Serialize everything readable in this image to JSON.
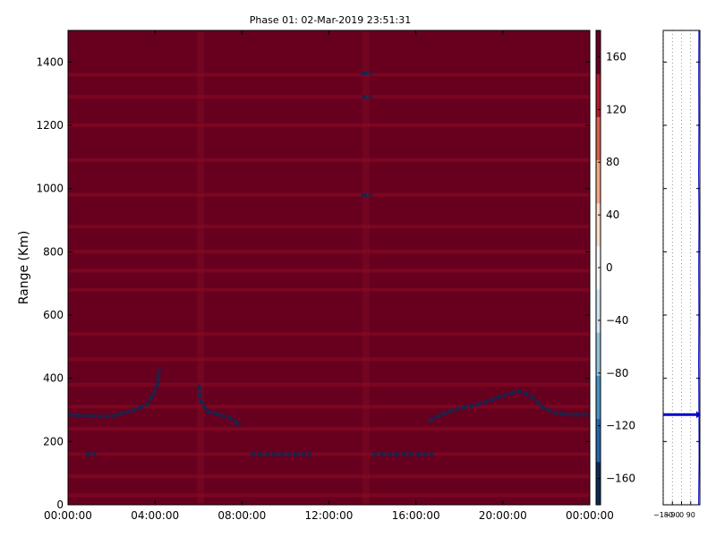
{
  "chart_data": [
    {
      "type": "heatmap",
      "title": "Phase 01: 02-Mar-2019 23:51:31",
      "xlabel": "",
      "ylabel": "Range (Km)",
      "x_ticks": [
        "00:00:00",
        "04:00:00",
        "08:00:00",
        "12:00:00",
        "16:00:00",
        "20:00:00",
        "00:00:00"
      ],
      "x_tick_hours": [
        0,
        4,
        8,
        12,
        16,
        20,
        24
      ],
      "xlim_hours": [
        0,
        24
      ],
      "y_ticks": [
        "0",
        "200",
        "400",
        "600",
        "800",
        "1000",
        "1200",
        "1400"
      ],
      "y_tick_values": [
        0,
        200,
        400,
        600,
        800,
        1000,
        1200,
        1400
      ],
      "ylim": [
        0,
        1500
      ],
      "background_value": 150,
      "bright_rows_km": [
        1360,
        1290,
        1200,
        1090,
        980,
        880,
        800,
        740,
        680,
        540,
        460,
        380,
        310,
        240,
        160,
        90,
        30
      ],
      "dark_columns_hours": [
        13.7,
        6.1
      ],
      "trace_segments": [
        {
          "points": [
            [
              0,
              285
            ],
            [
              1.2,
              280
            ],
            [
              2.0,
              280
            ],
            [
              2.6,
              290
            ],
            [
              3.2,
              305
            ],
            [
              3.6,
              315
            ],
            [
              3.9,
              345
            ],
            [
              4.1,
              380
            ],
            [
              4.2,
              430
            ]
          ],
          "value": -150
        },
        {
          "points": [
            [
              6.0,
              380
            ],
            [
              6.1,
              330
            ],
            [
              6.4,
              295
            ],
            [
              7.0,
              285
            ],
            [
              7.6,
              270
            ],
            [
              7.9,
              250
            ]
          ],
          "value": -150
        },
        {
          "points": [
            [
              0.8,
              160
            ],
            [
              1.3,
              160
            ]
          ],
          "value": -150
        },
        {
          "points": [
            [
              8.4,
              160
            ],
            [
              11.2,
              160
            ]
          ],
          "value": -150
        },
        {
          "points": [
            [
              14.0,
              160
            ],
            [
              16.8,
              160
            ]
          ],
          "value": -150
        },
        {
          "points": [
            [
              16.6,
              265
            ],
            [
              17.3,
              290
            ],
            [
              18.0,
              305
            ],
            [
              19.0,
              320
            ],
            [
              20.0,
              345
            ],
            [
              20.7,
              360
            ],
            [
              21.3,
              345
            ],
            [
              21.8,
              310
            ],
            [
              22.4,
              290
            ],
            [
              23.0,
              285
            ],
            [
              24.0,
              285
            ]
          ],
          "value": -150
        },
        {
          "points": [
            [
              13.5,
              1365
            ],
            [
              14.0,
              1365
            ]
          ],
          "value": -150
        },
        {
          "points": [
            [
              13.5,
              1290
            ],
            [
              14.0,
              1290
            ]
          ],
          "value": -150
        },
        {
          "points": [
            [
              13.5,
              980
            ],
            [
              14.0,
              980
            ]
          ],
          "value": -150
        }
      ]
    },
    {
      "type": "colorbar",
      "ticks": [
        "−160",
        "−120",
        "−80",
        "−40",
        "0",
        "40",
        "80",
        "120",
        "160"
      ],
      "tick_values": [
        -160,
        -120,
        -80,
        -40,
        0,
        40,
        80,
        120,
        160
      ],
      "range": [
        -180,
        180
      ],
      "colors": [
        "#0b2a54",
        "#2166ac",
        "#4393c3",
        "#92c5de",
        "#d1e5f0",
        "#f7f7f7",
        "#fddbc7",
        "#f4a582",
        "#d6604d",
        "#b2182b",
        "#67001f"
      ]
    },
    {
      "type": "line",
      "xlim": [
        -180,
        180
      ],
      "x_ticks": [
        "−180",
        "−90",
        "0",
        "90"
      ],
      "x_tick_values": [
        -180,
        -90,
        0,
        90
      ],
      "ylim": [
        0,
        1500
      ],
      "series": [
        {
          "x": [
            168,
            172,
            170,
            168,
            170,
            169,
            171,
            168,
            170,
            169,
            170
          ],
          "y": [
            0,
            150,
            300,
            450,
            600,
            750,
            900,
            1050,
            1200,
            1350,
            1500
          ]
        }
      ],
      "marker_y": 285,
      "color": "#0000cc"
    }
  ]
}
